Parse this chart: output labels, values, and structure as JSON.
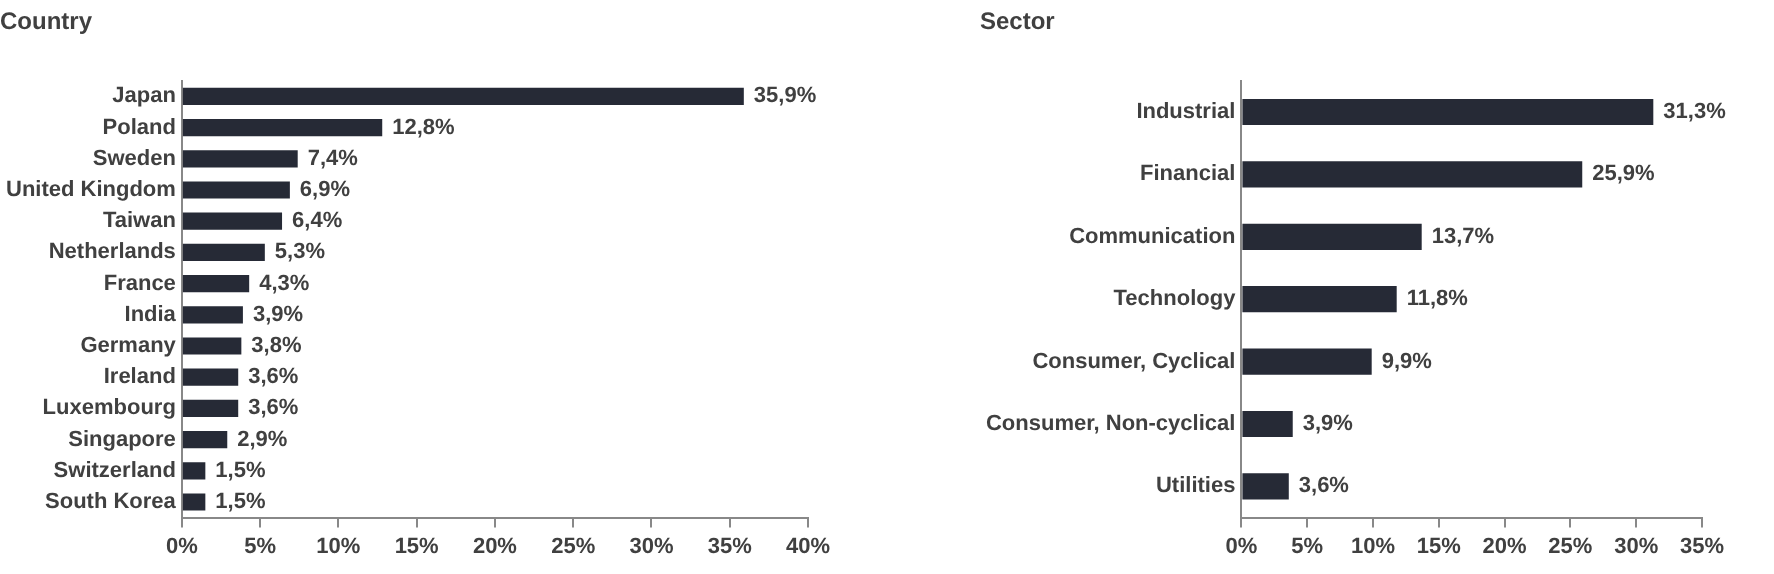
{
  "chart_data": [
    {
      "type": "bar",
      "title": "Country",
      "orientation": "horizontal",
      "categories": [
        "Japan",
        "Poland",
        "Sweden",
        "United Kingdom",
        "Taiwan",
        "Netherlands",
        "France",
        "India",
        "Germany",
        "Ireland",
        "Luxembourg",
        "Singapore",
        "Switzerland",
        "South Korea"
      ],
      "values": [
        35.9,
        12.8,
        7.4,
        6.9,
        6.4,
        5.3,
        4.3,
        3.9,
        3.8,
        3.6,
        3.6,
        2.9,
        1.5,
        1.5
      ],
      "value_labels": [
        "35,9%",
        "12,8%",
        "7,4%",
        "6,9%",
        "6,4%",
        "5,3%",
        "4,3%",
        "3,9%",
        "3,8%",
        "3,6%",
        "3,6%",
        "2,9%",
        "1,5%",
        "1,5%"
      ],
      "color": "#262a36",
      "xlim": [
        0,
        40
      ],
      "xticks": [
        {
          "value": 0,
          "label": "0%"
        },
        {
          "value": 5,
          "label": "5%"
        },
        {
          "value": 10,
          "label": "10%"
        },
        {
          "value": 15,
          "label": "15%"
        },
        {
          "value": 20,
          "label": "20%"
        },
        {
          "value": 25,
          "label": "25%"
        },
        {
          "value": 30,
          "label": "30%"
        },
        {
          "value": 35,
          "label": "35%"
        },
        {
          "value": 40,
          "label": "40%"
        }
      ],
      "grid": false,
      "legend": false
    },
    {
      "type": "bar",
      "title": "Sector",
      "orientation": "horizontal",
      "categories": [
        "Industrial",
        "Financial",
        "Communication",
        "Technology",
        "Consumer, Cyclical",
        "Consumer, Non-cyclical",
        "Utilities"
      ],
      "values": [
        31.3,
        25.9,
        13.7,
        11.8,
        9.9,
        3.9,
        3.6
      ],
      "value_labels": [
        "31,3%",
        "25,9%",
        "13,7%",
        "11,8%",
        "9,9%",
        "3,9%",
        "3,6%"
      ],
      "color": "#262a36",
      "xlim": [
        0,
        35
      ],
      "xticks": [
        {
          "value": 0,
          "label": "0%"
        },
        {
          "value": 5,
          "label": "5%"
        },
        {
          "value": 10,
          "label": "10%"
        },
        {
          "value": 15,
          "label": "15%"
        },
        {
          "value": 20,
          "label": "20%"
        },
        {
          "value": 25,
          "label": "25%"
        },
        {
          "value": 30,
          "label": "30%"
        },
        {
          "value": 35,
          "label": "35%"
        }
      ],
      "grid": false,
      "legend": false
    }
  ]
}
